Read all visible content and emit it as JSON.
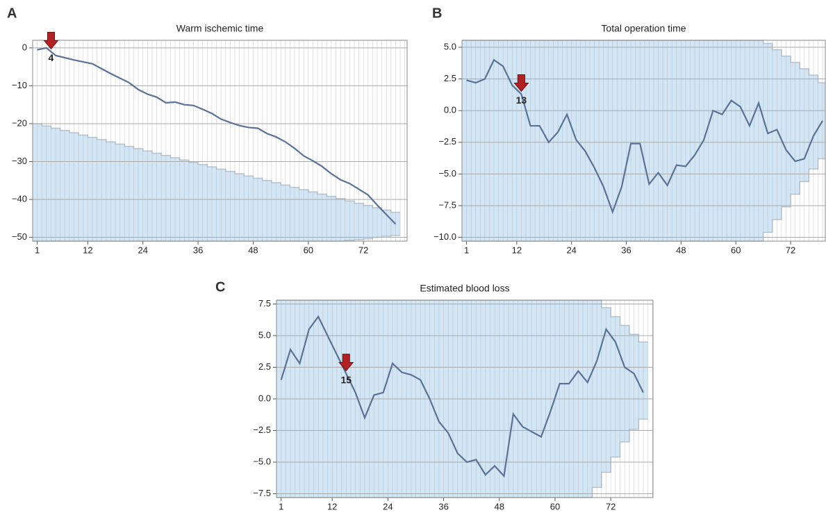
{
  "chart_data": [
    {
      "type": "line",
      "panel": "A",
      "title": "Warm ischemic time",
      "x": [
        1,
        3,
        5,
        7,
        9,
        11,
        13,
        15,
        17,
        19,
        21,
        23,
        25,
        27,
        29,
        31,
        33,
        35,
        37,
        39,
        41,
        43,
        45,
        47,
        49,
        51,
        53,
        55,
        57,
        59,
        61,
        63,
        65,
        67,
        69,
        71,
        73,
        75,
        77,
        79
      ],
      "series": [
        {
          "color": "#5b7298",
          "values": [
            -0.5,
            0,
            -2,
            -2.6,
            -3.2,
            -3.7,
            -4.2,
            -5.5,
            -6.8,
            -8,
            -9.2,
            -11,
            -12.2,
            -13,
            -14.5,
            -14.3,
            -15,
            -15.2,
            -16.2,
            -17.3,
            -18.8,
            -19.7,
            -20.5,
            -21,
            -21.2,
            -22.6,
            -23.5,
            -24.8,
            -26.5,
            -28.5,
            -29.8,
            -31.3,
            -33.2,
            -34.8,
            -35.8,
            -37.3,
            -38.8,
            -41.5,
            -44,
            -46.5
          ]
        }
      ],
      "boundary": {
        "color": "#d3e6f5",
        "upper": [
          -20,
          -20.6,
          -21.2,
          -21.8,
          -22.4,
          -23,
          -23.6,
          -24.2,
          -24.8,
          -25.4,
          -26,
          -26.6,
          -27.2,
          -27.8,
          -28.4,
          -29,
          -29.6,
          -30.2,
          -30.8,
          -31.4,
          -32,
          -32.6,
          -33.2,
          -33.8,
          -34.4,
          -35,
          -35.6,
          -36.2,
          -36.8,
          -37.4,
          -38,
          -38.6,
          -39.2,
          -39.8,
          -40.4,
          -41,
          -41.6,
          -42.2,
          -42.8,
          -43.4
        ],
        "lower": [
          -51,
          -51,
          -51,
          -51,
          -51,
          -51,
          -51,
          -51,
          -51,
          -51,
          -51,
          -51,
          -51,
          -51,
          -51,
          -51,
          -51,
          -51,
          -51,
          -51,
          -51,
          -51,
          -51,
          -51,
          -51,
          -51,
          -51,
          -51,
          -51,
          -51,
          -51,
          -51,
          -51,
          -51,
          -50.8,
          -50.6,
          -50.4,
          -50,
          -49.7,
          -49.5
        ]
      },
      "annotations": [
        {
          "x": 4,
          "label": "4"
        }
      ],
      "xlim": [
        0,
        81.5
      ],
      "ylim": [
        -51,
        2
      ],
      "xticks": [
        1,
        12,
        24,
        36,
        48,
        60,
        72
      ],
      "yticks": [
        0,
        {
          "value": -10,
          "label": "−10"
        },
        {
          "value": -20,
          "label": "−20"
        },
        {
          "value": -30,
          "label": "−30"
        },
        {
          "value": -40,
          "label": "−40"
        },
        {
          "value": -50,
          "label": "−50"
        }
      ],
      "grid": true
    },
    {
      "type": "line",
      "panel": "B",
      "title": "Total operation time",
      "x": [
        1,
        3,
        5,
        7,
        9,
        11,
        13,
        15,
        17,
        19,
        21,
        23,
        25,
        27,
        29,
        31,
        33,
        35,
        37,
        39,
        41,
        43,
        45,
        47,
        49,
        51,
        53,
        55,
        57,
        59,
        61,
        63,
        65,
        67,
        69,
        71,
        73,
        75,
        77,
        79
      ],
      "series": [
        {
          "color": "#5b7298",
          "values": [
            2.4,
            2.2,
            2.5,
            4.0,
            3.5,
            2.0,
            1.3,
            -1.2,
            -1.2,
            -2.5,
            -1.7,
            -0.3,
            -2.3,
            -3.2,
            -4.5,
            -6.0,
            -8.0,
            -6.0,
            -2.6,
            -2.6,
            -5.8,
            -4.9,
            -5.9,
            -4.3,
            -4.4,
            -3.5,
            -2.3,
            0.0,
            -0.3,
            0.8,
            0.3,
            -1.2,
            0.6,
            -1.8,
            -1.5,
            -3.1,
            -4.0,
            -3.8,
            -2.0,
            -0.8
          ]
        }
      ],
      "boundary": {
        "color": "#d3e6f5",
        "upper": [
          5.55,
          5.55,
          5.55,
          5.55,
          5.55,
          5.55,
          5.55,
          5.55,
          5.55,
          5.55,
          5.55,
          5.55,
          5.55,
          5.55,
          5.55,
          5.55,
          5.55,
          5.55,
          5.55,
          5.55,
          5.55,
          5.55,
          5.55,
          5.55,
          5.55,
          5.55,
          5.55,
          5.55,
          5.55,
          5.55,
          5.55,
          5.55,
          5.55,
          5.3,
          4.8,
          4.3,
          3.8,
          3.3,
          2.8,
          2.2
        ],
        "lower": [
          -10.3,
          -10.3,
          -10.3,
          -10.3,
          -10.3,
          -10.3,
          -10.3,
          -10.3,
          -10.3,
          -10.3,
          -10.3,
          -10.3,
          -10.3,
          -10.3,
          -10.3,
          -10.3,
          -10.3,
          -10.3,
          -10.3,
          -10.3,
          -10.3,
          -10.3,
          -10.3,
          -10.3,
          -10.3,
          -10.3,
          -10.3,
          -10.3,
          -10.3,
          -10.3,
          -10.3,
          -10.3,
          -10.3,
          -9.6,
          -8.6,
          -7.6,
          -6.6,
          -5.6,
          -4.6,
          -3.8
        ]
      },
      "annotations": [
        {
          "x": 13,
          "label": "13"
        }
      ],
      "xlim": [
        0,
        79.6
      ],
      "ylim": [
        -10.3,
        5.55
      ],
      "xticks": [
        1,
        12,
        24,
        36,
        48,
        60,
        72
      ],
      "yticks": [
        {
          "value": 5,
          "label": "5.0"
        },
        2.5,
        {
          "value": 0,
          "label": "0.0"
        },
        {
          "value": -2.5,
          "label": "−2.5"
        },
        {
          "value": -5,
          "label": "−5.0"
        },
        {
          "value": -7.5,
          "label": "−7.5"
        },
        {
          "value": -10,
          "label": "−10.0"
        }
      ],
      "grid": true
    },
    {
      "type": "line",
      "panel": "C",
      "title": "Estimated blood loss",
      "x": [
        1,
        3,
        5,
        7,
        9,
        11,
        13,
        15,
        17,
        19,
        21,
        23,
        25,
        27,
        29,
        31,
        33,
        35,
        37,
        39,
        41,
        43,
        45,
        47,
        49,
        51,
        53,
        55,
        57,
        59,
        61,
        63,
        65,
        67,
        69,
        71,
        73,
        75,
        77,
        79
      ],
      "series": [
        {
          "color": "#5b7298",
          "values": [
            1.5,
            3.9,
            2.8,
            5.5,
            6.5,
            5.0,
            3.5,
            2.0,
            0.5,
            -1.5,
            0.3,
            0.5,
            2.8,
            2.1,
            1.9,
            1.5,
            0.0,
            -1.8,
            -2.7,
            -4.3,
            -5.0,
            -4.8,
            -6.0,
            -5.3,
            -6.1,
            -1.2,
            -2.2,
            -2.6,
            -3.0,
            -1.0,
            1.2,
            1.2,
            2.2,
            1.3,
            3.0,
            5.5,
            4.5,
            2.5,
            2.0,
            0.5
          ]
        }
      ],
      "boundary": {
        "color": "#d3e6f5",
        "upper": [
          7.8,
          7.8,
          7.8,
          7.8,
          7.8,
          7.8,
          7.8,
          7.8,
          7.8,
          7.8,
          7.8,
          7.8,
          7.8,
          7.8,
          7.8,
          7.8,
          7.8,
          7.8,
          7.8,
          7.8,
          7.8,
          7.8,
          7.8,
          7.8,
          7.8,
          7.8,
          7.8,
          7.8,
          7.8,
          7.8,
          7.8,
          7.8,
          7.8,
          7.8,
          7.8,
          7.2,
          6.5,
          5.8,
          5.1,
          4.5
        ],
        "lower": [
          -7.8,
          -7.8,
          -7.8,
          -7.8,
          -7.8,
          -7.8,
          -7.8,
          -7.8,
          -7.8,
          -7.8,
          -7.8,
          -7.8,
          -7.8,
          -7.8,
          -7.8,
          -7.8,
          -7.8,
          -7.8,
          -7.8,
          -7.8,
          -7.8,
          -7.8,
          -7.8,
          -7.8,
          -7.8,
          -7.8,
          -7.8,
          -7.8,
          -7.8,
          -7.8,
          -7.8,
          -7.8,
          -7.8,
          -7.8,
          -7.0,
          -5.8,
          -4.6,
          -3.4,
          -2.4,
          -1.6
        ]
      },
      "annotations": [
        {
          "x": 15,
          "label": "15"
        }
      ],
      "xlim": [
        0,
        81.1
      ],
      "ylim": [
        -7.8,
        7.8
      ],
      "xticks": [
        1,
        12,
        24,
        36,
        48,
        60,
        72
      ],
      "yticks": [
        7.5,
        {
          "value": 5,
          "label": "5.0"
        },
        2.5,
        {
          "value": 0,
          "label": "0.0"
        },
        {
          "value": -2.5,
          "label": "−2.5"
        },
        {
          "value": -5,
          "label": "−5.0"
        },
        {
          "value": -7.5,
          "label": "−7.5"
        }
      ],
      "grid": true
    }
  ]
}
